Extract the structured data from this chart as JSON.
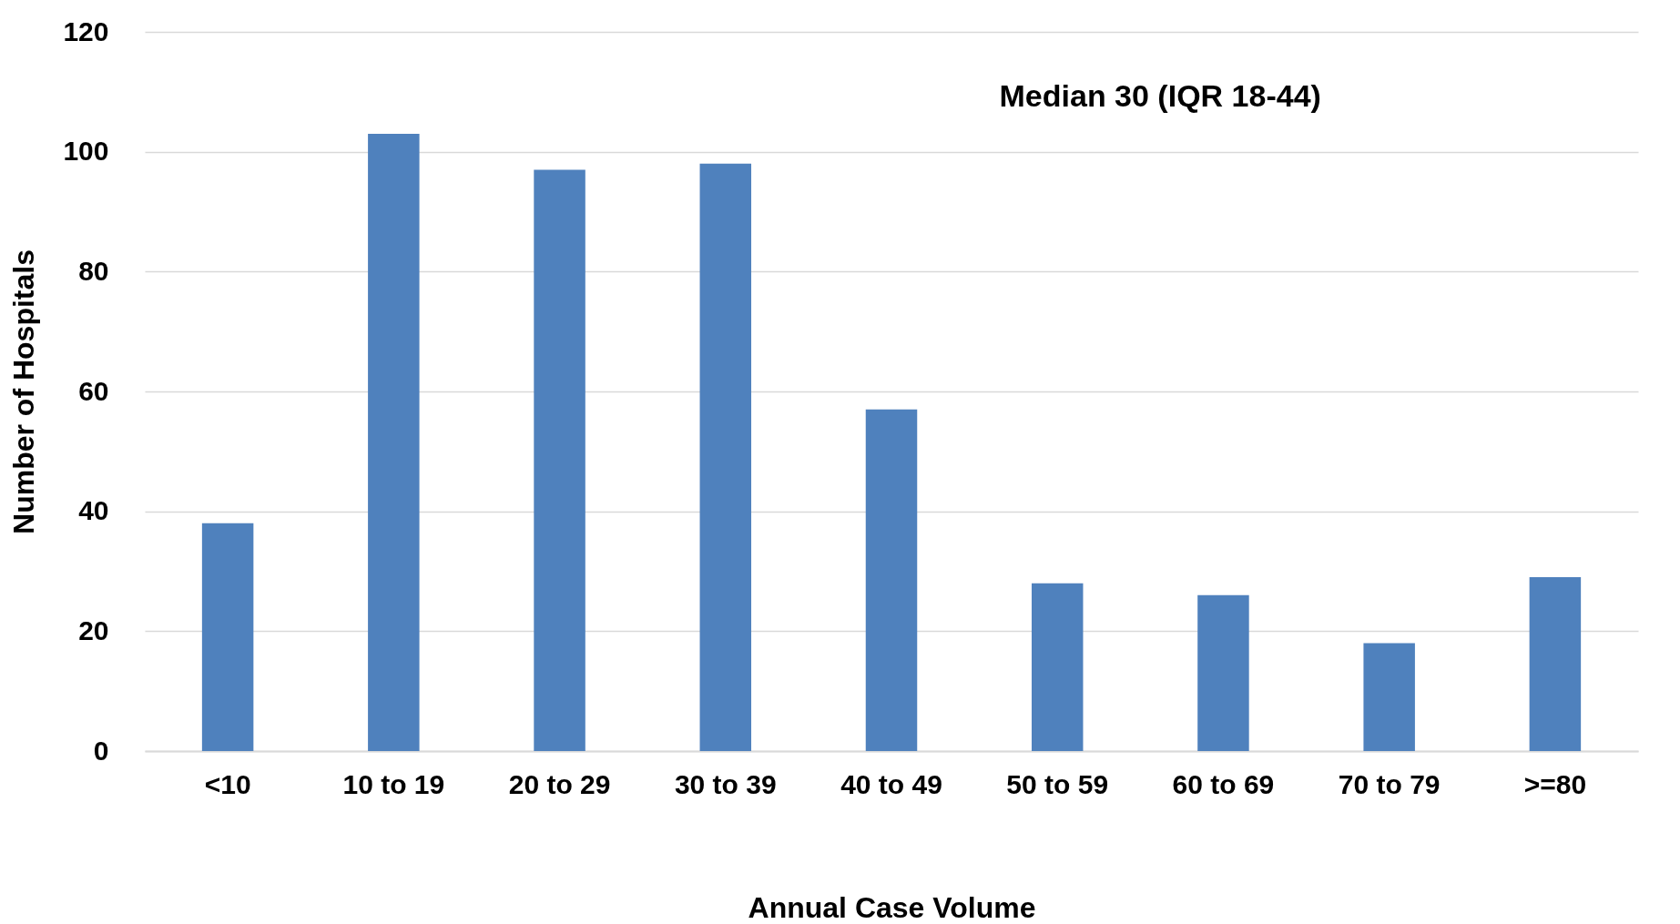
{
  "chart_data": {
    "type": "bar",
    "xlabel": "Annual Case Volume",
    "ylabel": "Number of Hospitals",
    "categories": [
      "<10",
      "10 to 19",
      "20 to 29",
      "30 to 39",
      "40 to 49",
      "50 to 59",
      "60 to 69",
      "70 to 79",
      ">=80"
    ],
    "values": [
      38,
      103,
      97,
      98,
      57,
      28,
      26,
      18,
      29
    ],
    "color": "#4f81bd",
    "ylim": [
      0,
      120
    ],
    "yticks": [
      0,
      20,
      40,
      60,
      80,
      100,
      120
    ],
    "grid": "y",
    "annotations": [
      "Median 30 (IQR 18-44)"
    ]
  }
}
